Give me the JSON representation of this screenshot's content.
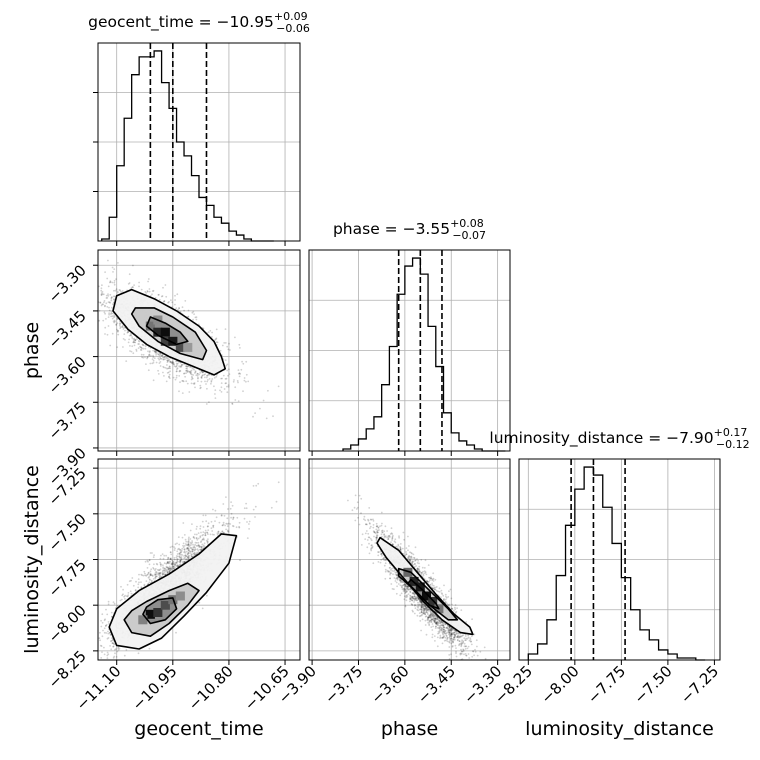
{
  "chart_data": {
    "type": "corner",
    "parameters": [
      "geocent_time",
      "phase",
      "luminosity_distance"
    ],
    "grid": true,
    "panels": [
      {
        "id": "hist-geocent_time",
        "type": "histogram",
        "param": "geocent_time",
        "title": {
          "prefix": "geocent_time = −10.95",
          "upper": "+0.09",
          "lower": "−0.06"
        },
        "xlim": [
          -11.15,
          -10.61
        ],
        "ylim": [
          0,
          1
        ],
        "quantiles": [
          -11.01,
          -10.95,
          -10.86
        ],
        "bins": [
          -11.14,
          -11.12,
          -11.1,
          -11.08,
          -11.06,
          -11.04,
          -11.02,
          -11.0,
          -10.98,
          -10.96,
          -10.94,
          -10.92,
          -10.9,
          -10.88,
          -10.86,
          -10.84,
          -10.82,
          -10.8,
          -10.78,
          -10.76,
          -10.74,
          -10.72,
          -10.7,
          -10.68
        ],
        "counts": [
          0.01,
          0.12,
          0.38,
          0.62,
          0.84,
          0.93,
          0.93,
          0.96,
          0.8,
          0.67,
          0.5,
          0.43,
          0.33,
          0.22,
          0.18,
          0.12,
          0.09,
          0.05,
          0.03,
          0.01,
          0,
          0,
          0
        ]
      },
      {
        "id": "hist-phase",
        "type": "histogram",
        "param": "phase",
        "title": {
          "prefix": "phase = −3.55",
          "upper": "+0.08",
          "lower": "−0.07"
        },
        "xlim": [
          -3.91,
          -3.26
        ],
        "ylim": [
          0,
          1
        ],
        "quantiles": [
          -3.62,
          -3.55,
          -3.48
        ],
        "bins": [
          -3.8,
          -3.775,
          -3.75,
          -3.725,
          -3.7,
          -3.675,
          -3.65,
          -3.625,
          -3.6,
          -3.575,
          -3.55,
          -3.525,
          -3.5,
          -3.475,
          -3.45,
          -3.425,
          -3.4,
          -3.375,
          -3.35,
          -3.325,
          -3.3,
          -3.275
        ],
        "counts": [
          0.01,
          0.03,
          0.06,
          0.11,
          0.17,
          0.33,
          0.52,
          0.78,
          0.92,
          0.96,
          0.88,
          0.62,
          0.42,
          0.19,
          0.09,
          0.05,
          0.03,
          0.01,
          0,
          0,
          0
        ]
      },
      {
        "id": "hist-luminosity_distance",
        "type": "histogram",
        "param": "luminosity_distance",
        "title": {
          "prefix": "luminosity_distance = −7.90",
          "upper": "+0.17",
          "lower": "−0.12"
        },
        "xlim": [
          -8.3,
          -7.22
        ],
        "ylim": [
          0,
          1
        ],
        "quantiles": [
          -8.02,
          -7.9,
          -7.73
        ],
        "bins": [
          -8.25,
          -8.2,
          -8.15,
          -8.1,
          -8.05,
          -8.0,
          -7.95,
          -7.9,
          -7.85,
          -7.8,
          -7.75,
          -7.7,
          -7.65,
          -7.6,
          -7.55,
          -7.5,
          -7.45,
          -7.4,
          -7.35,
          -7.3
        ],
        "counts": [
          0.03,
          0.08,
          0.2,
          0.42,
          0.67,
          0.85,
          0.96,
          0.92,
          0.76,
          0.58,
          0.41,
          0.25,
          0.15,
          0.1,
          0.05,
          0.03,
          0.01,
          0.01,
          0
        ]
      },
      {
        "id": "joint-geocent_time-phase",
        "type": "contour2d",
        "x": "geocent_time",
        "y": "phase",
        "xlim": [
          -11.15,
          -10.61
        ],
        "ylim": [
          -3.91,
          -3.25
        ],
        "correlation": -0.72,
        "center": [
          -10.97,
          -3.53
        ],
        "sd": [
          0.08,
          0.075
        ],
        "levels": [
          [
            [
              -11.1,
              -3.4
            ],
            [
              -11.06,
              -3.38
            ],
            [
              -11.0,
              -3.41
            ],
            [
              -10.94,
              -3.45
            ],
            [
              -10.88,
              -3.5
            ],
            [
              -10.84,
              -3.55
            ],
            [
              -10.82,
              -3.6
            ],
            [
              -10.81,
              -3.64
            ],
            [
              -10.84,
              -3.66
            ],
            [
              -10.9,
              -3.63
            ],
            [
              -10.96,
              -3.6
            ],
            [
              -11.02,
              -3.56
            ],
            [
              -11.07,
              -3.51
            ],
            [
              -11.11,
              -3.45
            ]
          ],
          [
            [
              -11.05,
              -3.44
            ],
            [
              -11.0,
              -3.44
            ],
            [
              -10.95,
              -3.47
            ],
            [
              -10.89,
              -3.52
            ],
            [
              -10.86,
              -3.58
            ],
            [
              -10.87,
              -3.61
            ],
            [
              -10.93,
              -3.59
            ],
            [
              -10.99,
              -3.55
            ],
            [
              -11.04,
              -3.5
            ],
            [
              -11.06,
              -3.46
            ]
          ],
          [
            [
              -11.01,
              -3.47
            ],
            [
              -10.97,
              -3.49
            ],
            [
              -10.93,
              -3.52
            ],
            [
              -10.91,
              -3.55
            ],
            [
              -10.94,
              -3.56
            ],
            [
              -10.99,
              -3.53
            ],
            [
              -11.02,
              -3.5
            ]
          ]
        ],
        "cells": [
          {
            "x": -11.01,
            "y": -3.5,
            "shade": 0.55
          },
          {
            "x": -10.99,
            "y": -3.52,
            "shade": 0.85
          },
          {
            "x": -10.97,
            "y": -3.52,
            "shade": 0.95
          },
          {
            "x": -10.97,
            "y": -3.55,
            "shade": 0.75
          },
          {
            "x": -10.95,
            "y": -3.55,
            "shade": 0.9
          },
          {
            "x": -10.93,
            "y": -3.57,
            "shade": 0.7
          },
          {
            "x": -10.99,
            "y": -3.48,
            "shade": 0.45
          },
          {
            "x": -10.91,
            "y": -3.57,
            "shade": 0.4
          }
        ]
      },
      {
        "id": "joint-geocent_time-luminosity_distance",
        "type": "contour2d",
        "x": "geocent_time",
        "y": "luminosity_distance",
        "xlim": [
          -11.15,
          -10.61
        ],
        "ylim": [
          -8.3,
          -7.2
        ],
        "correlation": 0.86,
        "center": [
          -10.97,
          -7.9
        ],
        "sd": [
          0.08,
          0.16
        ],
        "levels": [
          [
            [
              -11.12,
              -8.12
            ],
            [
              -11.1,
              -8.22
            ],
            [
              -11.04,
              -8.24
            ],
            [
              -10.98,
              -8.18
            ],
            [
              -10.92,
              -8.06
            ],
            [
              -10.86,
              -7.93
            ],
            [
              -10.8,
              -7.77
            ],
            [
              -10.78,
              -7.62
            ],
            [
              -10.82,
              -7.61
            ],
            [
              -10.88,
              -7.72
            ],
            [
              -10.96,
              -7.83
            ],
            [
              -11.04,
              -7.92
            ],
            [
              -11.1,
              -8.02
            ]
          ],
          [
            [
              -11.08,
              -8.08
            ],
            [
              -11.06,
              -8.15
            ],
            [
              -11.01,
              -8.17
            ],
            [
              -10.96,
              -8.1
            ],
            [
              -10.91,
              -8.0
            ],
            [
              -10.88,
              -7.92
            ],
            [
              -10.91,
              -7.88
            ],
            [
              -10.96,
              -7.92
            ],
            [
              -11.02,
              -7.98
            ],
            [
              -11.06,
              -8.03
            ]
          ],
          [
            [
              -11.03,
              -8.05
            ],
            [
              -11.01,
              -8.1
            ],
            [
              -10.97,
              -8.08
            ],
            [
              -10.94,
              -8.02
            ],
            [
              -10.95,
              -7.96
            ],
            [
              -10.99,
              -7.97
            ],
            [
              -11.02,
              -8.01
            ]
          ]
        ],
        "cells": [
          {
            "x": -11.01,
            "y": -8.05,
            "shade": 0.95
          },
          {
            "x": -10.99,
            "y": -8.04,
            "shade": 0.8
          },
          {
            "x": -10.97,
            "y": -8.0,
            "shade": 0.7
          },
          {
            "x": -10.95,
            "y": -7.97,
            "shade": 0.55
          },
          {
            "x": -10.93,
            "y": -7.95,
            "shade": 0.45
          },
          {
            "x": -11.03,
            "y": -8.08,
            "shade": 0.5
          }
        ]
      },
      {
        "id": "joint-phase-luminosity_distance",
        "type": "contour2d",
        "x": "phase",
        "y": "luminosity_distance",
        "xlim": [
          -3.91,
          -3.26
        ],
        "ylim": [
          -8.3,
          -7.2
        ],
        "correlation": -0.92,
        "center": [
          -3.55,
          -7.92
        ],
        "sd": [
          0.075,
          0.16
        ],
        "levels": [
          [
            [
              -3.68,
              -7.63
            ],
            [
              -3.62,
              -7.7
            ],
            [
              -3.56,
              -7.82
            ],
            [
              -3.5,
              -7.94
            ],
            [
              -3.44,
              -8.05
            ],
            [
              -3.39,
              -8.12
            ],
            [
              -3.38,
              -8.16
            ],
            [
              -3.42,
              -8.15
            ],
            [
              -3.48,
              -8.08
            ],
            [
              -3.54,
              -7.98
            ],
            [
              -3.6,
              -7.86
            ],
            [
              -3.66,
              -7.74
            ],
            [
              -3.69,
              -7.66
            ]
          ],
          [
            [
              -3.62,
              -7.8
            ],
            [
              -3.58,
              -7.82
            ],
            [
              -3.52,
              -7.92
            ],
            [
              -3.46,
              -8.02
            ],
            [
              -3.43,
              -8.08
            ],
            [
              -3.46,
              -8.08
            ],
            [
              -3.52,
              -8.0
            ],
            [
              -3.58,
              -7.9
            ],
            [
              -3.62,
              -7.84
            ]
          ],
          [
            [
              -3.58,
              -7.86
            ],
            [
              -3.54,
              -7.92
            ],
            [
              -3.5,
              -7.99
            ],
            [
              -3.49,
              -8.02
            ],
            [
              -3.52,
              -8.0
            ],
            [
              -3.56,
              -7.93
            ],
            [
              -3.59,
              -7.88
            ]
          ]
        ],
        "cells": [
          {
            "x": -3.59,
            "y": -7.82,
            "shade": 0.6
          },
          {
            "x": -3.57,
            "y": -7.87,
            "shade": 0.85
          },
          {
            "x": -3.55,
            "y": -7.9,
            "shade": 0.9
          },
          {
            "x": -3.53,
            "y": -7.95,
            "shade": 0.95
          },
          {
            "x": -3.51,
            "y": -7.98,
            "shade": 0.8
          },
          {
            "x": -3.49,
            "y": -8.02,
            "shade": 0.55
          }
        ]
      }
    ],
    "axes": {
      "geocent_time": {
        "label": "geocent_time",
        "ticks": [
          -11.1,
          -10.95,
          -10.8,
          -10.65
        ],
        "tick_labels": [
          "−11.10",
          "−10.95",
          "−10.80",
          "−10.65"
        ]
      },
      "phase": {
        "label": "phase",
        "ticks": [
          -3.9,
          -3.75,
          -3.6,
          -3.45,
          -3.3
        ],
        "tick_labels": [
          "−3.90",
          "−3.75",
          "−3.60",
          "−3.45",
          "−3.30"
        ]
      },
      "luminosity_distance": {
        "label": "luminosity_distance",
        "ticks": [
          -8.25,
          -8.0,
          -7.75,
          -7.5,
          -7.25
        ],
        "tick_labels": [
          "−8.25",
          "−8.00",
          "−7.75",
          "−7.50",
          "−7.25"
        ]
      }
    }
  }
}
